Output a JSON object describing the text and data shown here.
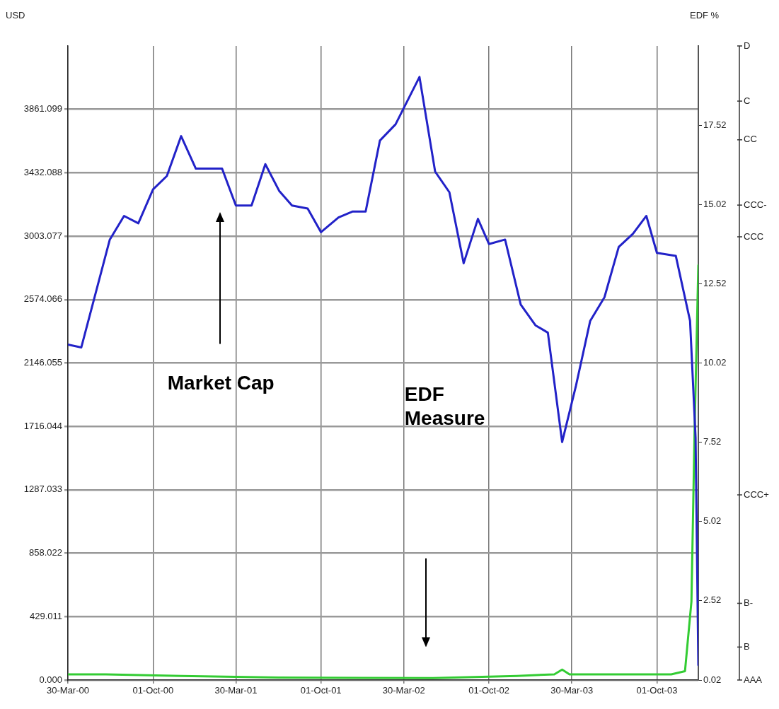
{
  "chart_data": {
    "type": "line",
    "ylabel": "USD",
    "y2label": "EDF %",
    "xlim": [
      "2000-03-30",
      "2003-12-30"
    ],
    "xticks": [
      {
        "value": "2000-03-30",
        "label": "30-Mar-00"
      },
      {
        "value": "2000-10-01",
        "label": "01-Oct-00"
      },
      {
        "value": "2001-03-30",
        "label": "30-Mar-01"
      },
      {
        "value": "2001-10-01",
        "label": "01-Oct-01"
      },
      {
        "value": "2002-03-30",
        "label": "30-Mar-02"
      },
      {
        "value": "2002-10-01",
        "label": "01-Oct-02"
      },
      {
        "value": "2003-03-30",
        "label": "30-Mar-03"
      },
      {
        "value": "2003-10-01",
        "label": "01-Oct-03"
      }
    ],
    "ylim": [
      0,
      4290.11
    ],
    "yticks": [
      {
        "value": 0,
        "label": "0.000"
      },
      {
        "value": 429.011,
        "label": "429.011"
      },
      {
        "value": 858.022,
        "label": "858.022"
      },
      {
        "value": 1287.033,
        "label": "1287.033"
      },
      {
        "value": 1716.044,
        "label": "1716.044"
      },
      {
        "value": 2146.055,
        "label": "2146.055"
      },
      {
        "value": 2574.066,
        "label": "2574.066"
      },
      {
        "value": 3003.077,
        "label": "3003.077"
      },
      {
        "value": 3432.088,
        "label": "3432.088"
      },
      {
        "value": 3861.099,
        "label": "3861.099"
      }
    ],
    "y2lim": [
      0.02,
      20.02
    ],
    "y2ticks": [
      0.02,
      2.52,
      5.02,
      7.52,
      10.02,
      12.52,
      15.02,
      17.52
    ],
    "grid": true,
    "legend": false,
    "marker": "none",
    "line_style": "solid",
    "series": [
      {
        "color": "#2222c8",
        "axis": "y",
        "x": [
          "2000-03-30",
          "2000-04-28",
          "2000-06-29",
          "2000-07-30",
          "2000-08-30",
          "2000-10-01",
          "2000-10-31",
          "2000-12-01",
          "2001-01-02",
          "2001-02-28",
          "2001-03-30",
          "2001-05-03",
          "2001-06-02",
          "2001-07-02",
          "2001-07-30",
          "2001-09-02",
          "2001-10-01",
          "2001-11-08",
          "2001-12-09",
          "2002-01-06",
          "2002-02-06",
          "2002-03-12",
          "2002-05-03",
          "2002-06-06",
          "2002-07-07",
          "2002-08-07",
          "2002-09-07",
          "2002-10-01",
          "2002-11-05",
          "2002-12-09",
          "2003-01-10",
          "2003-02-06",
          "2003-03-09",
          "2003-04-08",
          "2003-05-09",
          "2003-06-09",
          "2003-07-10",
          "2003-08-10",
          "2003-09-08",
          "2003-10-01",
          "2003-11-11",
          "2003-12-12",
          "2003-12-24",
          "2003-12-30"
        ],
        "values": [
          2270,
          2250,
          2980,
          3140,
          3090,
          3320,
          3410,
          3680,
          3460,
          3460,
          3210,
          3210,
          3490,
          3310,
          3210,
          3190,
          3030,
          3130,
          3170,
          3170,
          3650,
          3760,
          4080,
          3440,
          3300,
          2820,
          3120,
          2950,
          2980,
          2540,
          2400,
          2350,
          1610,
          1990,
          2430,
          2590,
          2930,
          3020,
          3140,
          2890,
          2870,
          2430,
          1640,
          100
        ]
      },
      {
        "color": "#33cc33",
        "axis": "y2",
        "x": [
          "2000-03-30",
          "2000-06-20",
          "2000-12-01",
          "2001-03-30",
          "2001-07-01",
          "2002-06-01",
          "2002-12-01",
          "2003-02-20",
          "2003-03-09",
          "2003-03-25",
          "2003-11-01",
          "2003-12-01",
          "2003-12-15",
          "2003-12-22",
          "2003-12-30"
        ],
        "values": [
          0.2,
          0.2,
          0.15,
          0.12,
          0.1,
          0.08,
          0.15,
          0.2,
          0.35,
          0.2,
          0.2,
          0.3,
          2.5,
          8,
          13.1
        ]
      }
    ],
    "annotations": [
      "Market Cap",
      "EDF Measure",
      "D",
      "C",
      "CC",
      "CCC-",
      "CCC",
      "CCC+",
      "B-",
      "B",
      "AAA"
    ]
  }
}
